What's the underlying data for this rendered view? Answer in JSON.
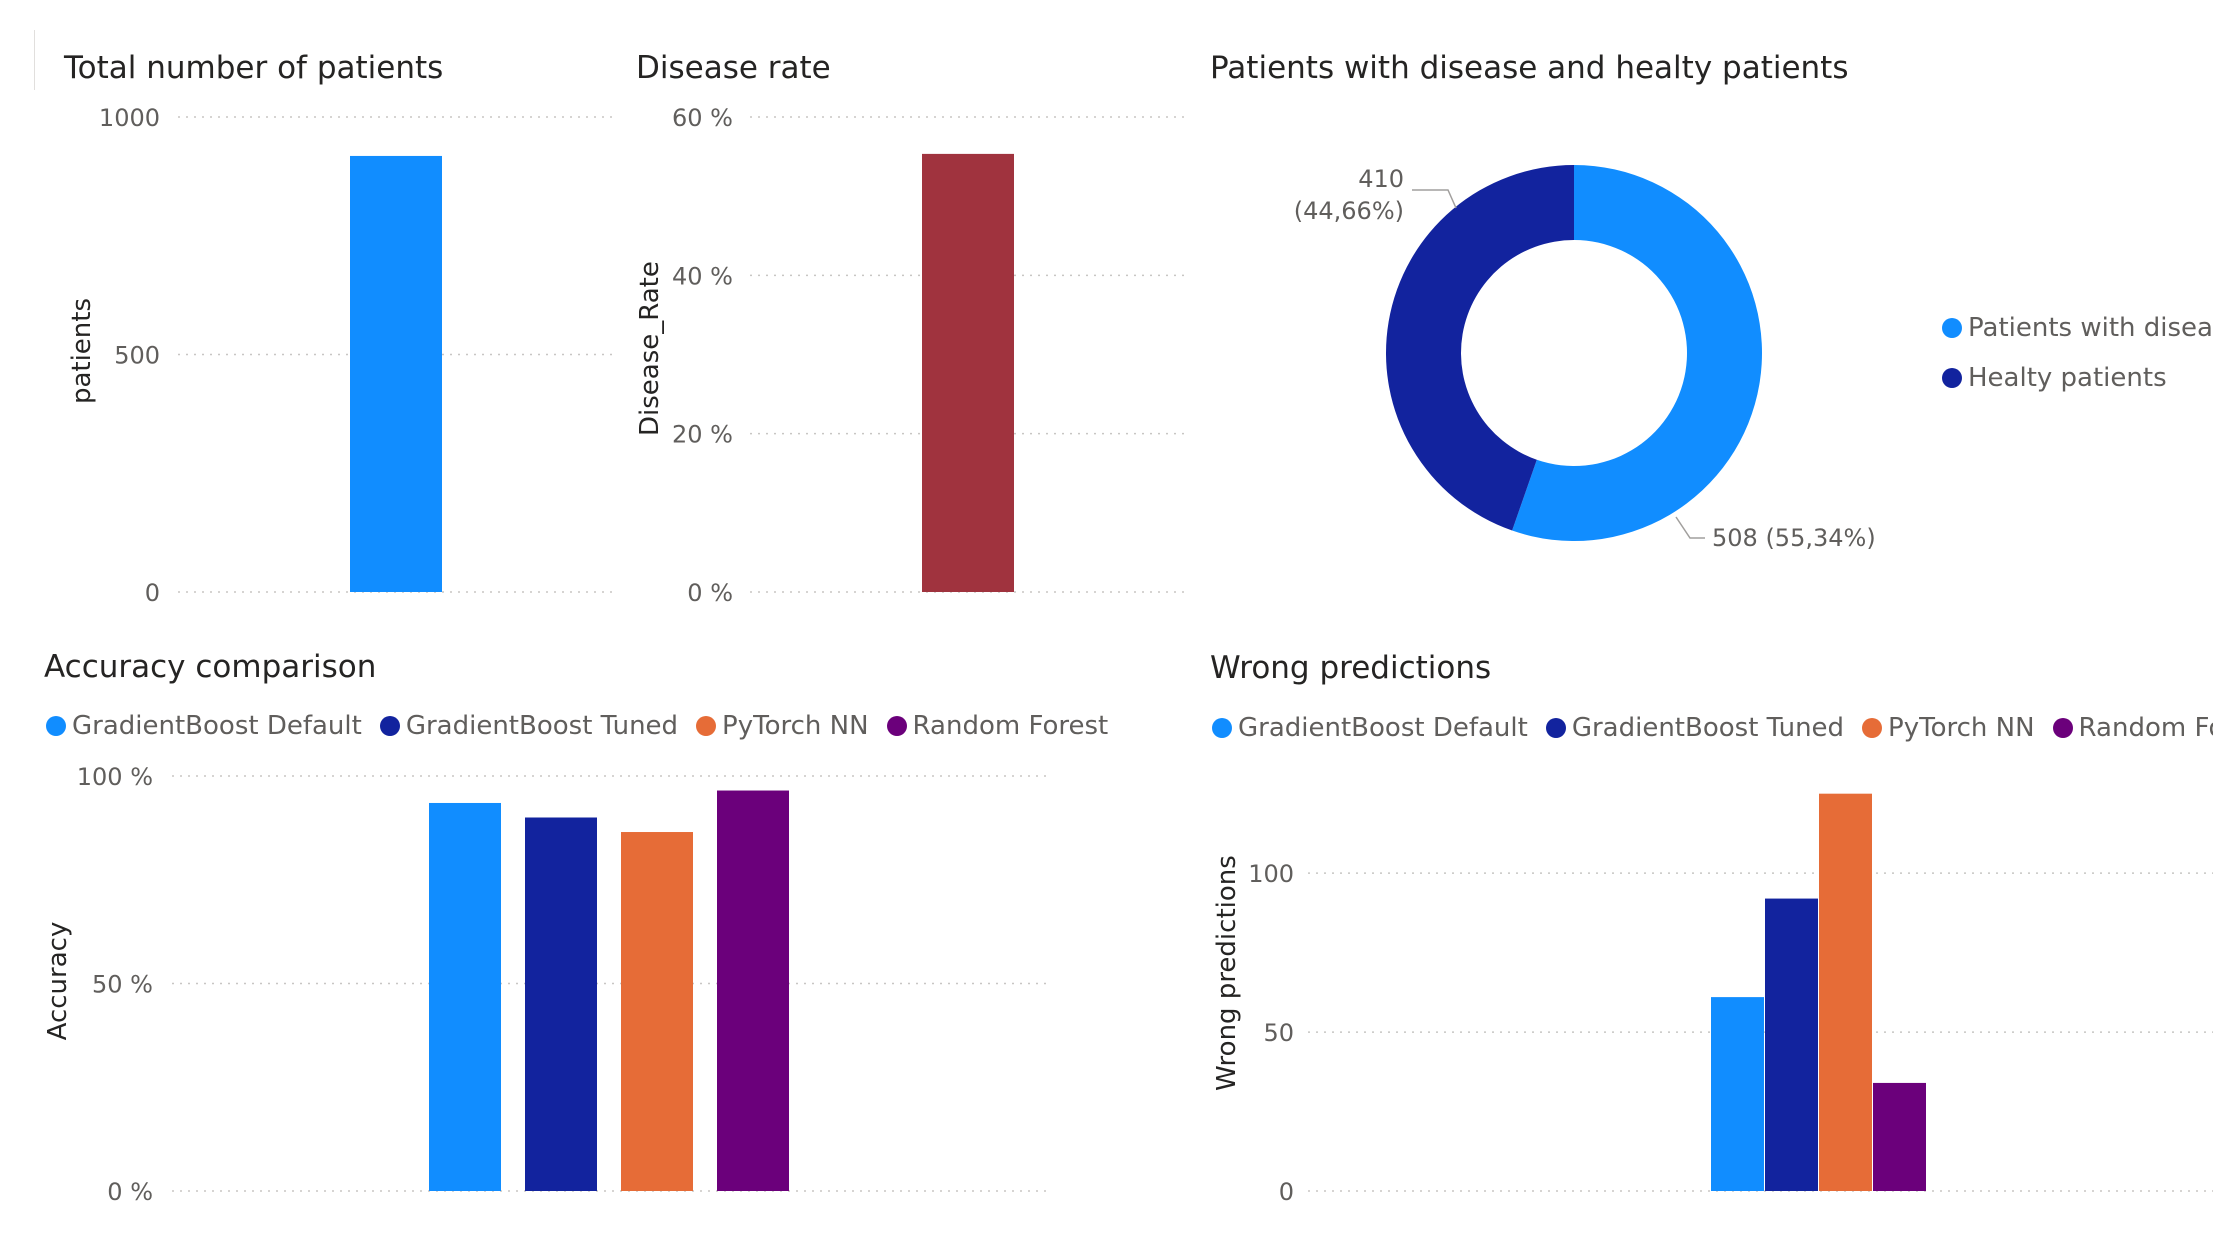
{
  "chart_data": [
    {
      "id": "total",
      "type": "bar",
      "title": "Total number of patients",
      "ylabel": "patients",
      "categories": [
        ""
      ],
      "values": [
        918
      ],
      "ylim": [
        0,
        1000
      ],
      "yticks": [
        0,
        500,
        1000
      ],
      "ytick_labels": [
        "0",
        "500",
        "1000"
      ],
      "color": "#118DFF",
      "grid": true
    },
    {
      "id": "rate",
      "type": "bar",
      "title": "Disease rate",
      "ylabel": "Disease_Rate",
      "categories": [
        ""
      ],
      "values": [
        0.5534
      ],
      "ylim": [
        0,
        0.6
      ],
      "yticks": [
        0,
        0.2,
        0.4,
        0.6
      ],
      "ytick_labels": [
        "0 %",
        "20 %",
        "40 %",
        "60 %"
      ],
      "color": "#A0333E",
      "grid": true
    },
    {
      "id": "donut",
      "type": "pie",
      "title": "Patients with disease and healty patients",
      "labels": [
        "Patients with disease",
        "Healty patients"
      ],
      "values": [
        508,
        410
      ],
      "data_labels": [
        "508 (55,34%)",
        "410 (44,66%)"
      ],
      "label_410_line1": "410",
      "label_410_line2": "(44,66%)",
      "colors": [
        "#118DFF",
        "#12239E"
      ],
      "legend": "right"
    },
    {
      "id": "accuracy",
      "type": "bar",
      "title": "Accuracy comparison",
      "ylabel": "Accuracy",
      "series": [
        {
          "name": "GradientBoost Default",
          "values": [
            0.935
          ],
          "color": "#118DFF"
        },
        {
          "name": "GradientBoost Tuned",
          "values": [
            0.9
          ],
          "color": "#12239E"
        },
        {
          "name": "PyTorch NN",
          "values": [
            0.865
          ],
          "color": "#E66C37"
        },
        {
          "name": "Random Forest",
          "values": [
            0.965
          ],
          "color": "#6B007B"
        }
      ],
      "ylim": [
        0,
        1
      ],
      "yticks": [
        0,
        0.5,
        1
      ],
      "ytick_labels": [
        "0 %",
        "50 %",
        "100 %"
      ],
      "legend": "top",
      "grid": true
    },
    {
      "id": "wrong",
      "type": "bar",
      "title": "Wrong predictions",
      "ylabel": "Wrong predictions",
      "series": [
        {
          "name": "GradientBoost Default",
          "values": [
            61
          ],
          "color": "#118DFF"
        },
        {
          "name": "GradientBoost Tuned",
          "values": [
            92
          ],
          "color": "#12239E"
        },
        {
          "name": "PyTorch NN",
          "values": [
            125
          ],
          "color": "#E66C37"
        },
        {
          "name": "Random Forest",
          "values": [
            34
          ],
          "color": "#6B007B"
        }
      ],
      "ylim": [
        0,
        140
      ],
      "yticks": [
        0,
        50,
        100
      ],
      "ytick_labels": [
        "0",
        "50",
        "100"
      ],
      "legend": "top",
      "grid": true
    }
  ]
}
